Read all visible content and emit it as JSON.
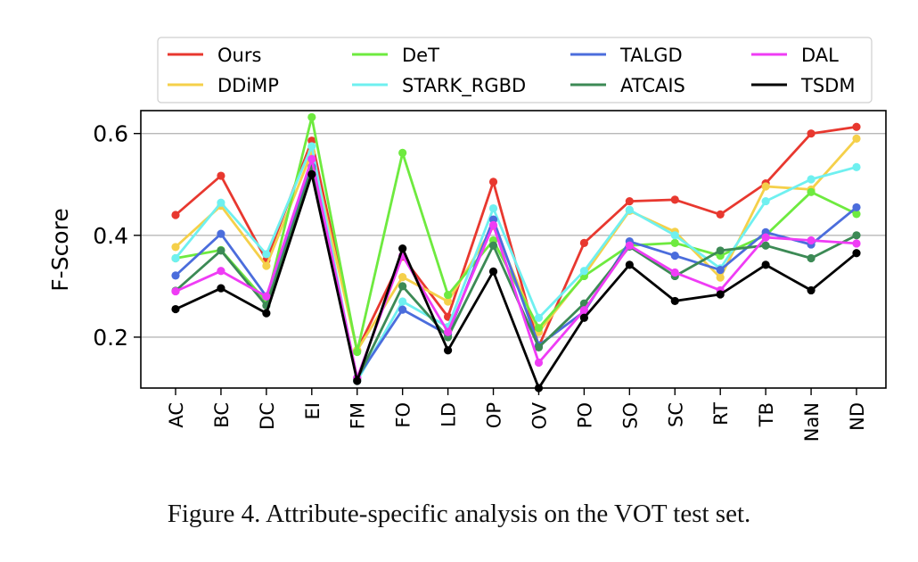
{
  "chart_data": {
    "type": "line",
    "ylabel": "F-Score",
    "xlabel": "",
    "ylim": [
      0.1,
      0.645
    ],
    "yticks": [
      0.2,
      0.4,
      0.6
    ],
    "ytick_labels": [
      "0.2",
      "0.4",
      "0.6"
    ],
    "grid": "horizontal",
    "legend_position": "top",
    "categories": [
      "AC",
      "BC",
      "DC",
      "EI",
      "FM",
      "FO",
      "LD",
      "OP",
      "OV",
      "PO",
      "SO",
      "SC",
      "RT",
      "TB",
      "NaN",
      "ND"
    ],
    "series": [
      {
        "name": "Ours",
        "color": "#e8382f",
        "values": [
          0.44,
          0.517,
          0.351,
          0.586,
          0.174,
          0.358,
          0.24,
          0.505,
          0.182,
          0.385,
          0.467,
          0.47,
          0.441,
          0.502,
          0.6,
          0.613
        ]
      },
      {
        "name": "DDiMP",
        "color": "#f5d04a",
        "values": [
          0.377,
          0.458,
          0.34,
          0.563,
          0.174,
          0.318,
          0.27,
          0.418,
          0.21,
          0.322,
          0.448,
          0.407,
          0.317,
          0.496,
          0.49,
          0.59
        ]
      },
      {
        "name": "DeT",
        "color": "#6eea3f",
        "values": [
          0.355,
          0.371,
          0.27,
          0.632,
          0.171,
          0.562,
          0.283,
          0.39,
          0.218,
          0.32,
          0.38,
          0.385,
          0.36,
          0.4,
          0.485,
          0.442
        ]
      },
      {
        "name": "STARK_RGBD",
        "color": "#6ff0f0",
        "values": [
          0.355,
          0.464,
          0.363,
          0.575,
          0.114,
          0.27,
          0.22,
          0.453,
          0.238,
          0.33,
          0.45,
          0.4,
          0.335,
          0.467,
          0.51,
          0.534
        ]
      },
      {
        "name": "TALGD",
        "color": "#4b6ddc",
        "values": [
          0.321,
          0.403,
          0.28,
          0.535,
          0.12,
          0.254,
          0.205,
          0.431,
          0.184,
          0.25,
          0.388,
          0.36,
          0.332,
          0.406,
          0.382,
          0.455
        ]
      },
      {
        "name": "ATCAIS",
        "color": "#3c8a55",
        "values": [
          0.291,
          0.37,
          0.262,
          0.53,
          0.117,
          0.3,
          0.2,
          0.38,
          0.18,
          0.266,
          0.378,
          0.32,
          0.37,
          0.38,
          0.355,
          0.4
        ]
      },
      {
        "name": "DAL",
        "color": "#ef3cf5",
        "values": [
          0.29,
          0.33,
          0.28,
          0.55,
          0.12,
          0.36,
          0.21,
          0.42,
          0.15,
          0.253,
          0.38,
          0.327,
          0.292,
          0.396,
          0.39,
          0.384
        ]
      },
      {
        "name": "TSDM",
        "color": "#000000",
        "values": [
          0.255,
          0.296,
          0.247,
          0.52,
          0.114,
          0.374,
          0.174,
          0.329,
          0.1,
          0.238,
          0.342,
          0.271,
          0.284,
          0.342,
          0.292,
          0.365
        ]
      }
    ]
  },
  "caption": "Figure 4. Attribute-specific analysis on the VOT test set."
}
